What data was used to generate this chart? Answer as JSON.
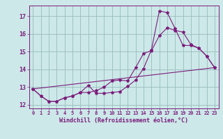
{
  "xlabel": "Windchill (Refroidissement éolien,°C)",
  "bg_color": "#cce8e8",
  "line_color": "#7b1b7b",
  "grid_color": "#99bbbb",
  "spine_color": "#7b1b7b",
  "xlim": [
    -0.5,
    23.5
  ],
  "ylim": [
    11.8,
    17.6
  ],
  "yticks": [
    12,
    13,
    14,
    15,
    16,
    17
  ],
  "xticks": [
    0,
    1,
    2,
    3,
    4,
    5,
    6,
    7,
    8,
    9,
    10,
    11,
    12,
    13,
    14,
    15,
    16,
    17,
    18,
    19,
    20,
    21,
    22,
    23
  ],
  "series": [
    {
      "x": [
        0,
        1,
        2,
        3,
        4,
        5,
        6,
        7,
        8,
        9,
        10,
        11,
        12,
        13,
        14,
        15,
        16,
        17,
        18,
        19,
        20,
        21,
        22,
        23
      ],
      "y": [
        12.9,
        12.5,
        12.2,
        12.2,
        12.4,
        12.5,
        12.7,
        12.7,
        12.8,
        13.0,
        13.35,
        13.4,
        13.35,
        14.1,
        14.9,
        15.05,
        15.9,
        16.35,
        16.2,
        16.1,
        15.4,
        15.2,
        14.75,
        14.1
      ],
      "marker": true
    },
    {
      "x": [
        0,
        1,
        2,
        3,
        4,
        5,
        6,
        7,
        8,
        9,
        10,
        11,
        12,
        13,
        14,
        15,
        16,
        17,
        18,
        19,
        20,
        21,
        22,
        23
      ],
      "y": [
        12.9,
        12.5,
        12.2,
        12.2,
        12.4,
        12.5,
        12.7,
        13.1,
        12.65,
        12.65,
        12.7,
        12.75,
        13.05,
        13.4,
        14.05,
        15.1,
        17.3,
        17.2,
        16.3,
        15.35,
        15.35,
        15.2,
        14.75,
        14.1
      ],
      "marker": true
    },
    {
      "x": [
        0,
        23
      ],
      "y": [
        12.9,
        14.1
      ],
      "marker": false
    }
  ]
}
